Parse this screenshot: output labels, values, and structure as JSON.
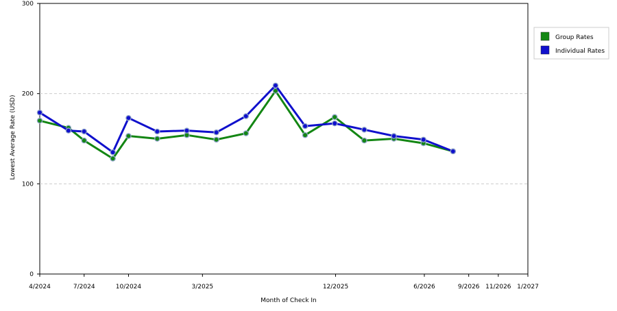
{
  "chart_data": {
    "type": "line",
    "title": "",
    "xlabel": "Month of Check In",
    "ylabel": "Lowest Average Rate (USD)",
    "ylim": [
      0,
      300
    ],
    "yticks": [
      0,
      100,
      200,
      300
    ],
    "grid": true,
    "legend_position": "right",
    "x": [
      "4/2024",
      "5/2024",
      "6/2024",
      "7/2024",
      "8/2024",
      "9/2024",
      "10/2024",
      "11/2024",
      "12/2024",
      "1/2025",
      "2/2025",
      "3/2025",
      "4/2025",
      "5/2025",
      "6/2025",
      "7/2025",
      "8/2025",
      "9/2025",
      "10/2025",
      "11/2025",
      "12/2025",
      "1/2026",
      "2/2026",
      "3/2026",
      "4/2026",
      "5/2026",
      "6/2026",
      "7/2026",
      "8/2026",
      "9/2026",
      "10/2026",
      "11/2026",
      "12/2026",
      "1/2027"
    ],
    "xtick_labels": [
      {
        "label": "4/2024",
        "index": 0
      },
      {
        "label": "7/2024",
        "index": 3
      },
      {
        "label": "10/2024",
        "index": 6
      },
      {
        "label": "3/2025",
        "index": 11
      },
      {
        "label": "12/2025",
        "index": 20
      },
      {
        "label": "6/2026",
        "index": 26
      },
      {
        "label": "9/2026",
        "index": 29
      },
      {
        "label": "11/2026",
        "index": 31
      },
      {
        "label": "1/2027",
        "index": 33
      }
    ],
    "series": [
      {
        "name": "Group Rates",
        "color": "#138613",
        "points": [
          {
            "x_index": 0,
            "y": 170
          },
          {
            "x_index": 1.94,
            "y": 162
          },
          {
            "x_index": 3.0,
            "y": 148
          },
          {
            "x_index": 4.94,
            "y": 128
          },
          {
            "x_index": 6.0,
            "y": 153
          },
          {
            "x_index": 7.94,
            "y": 150
          },
          {
            "x_index": 9.94,
            "y": 154
          },
          {
            "x_index": 11.94,
            "y": 149
          },
          {
            "x_index": 13.94,
            "y": 156
          },
          {
            "x_index": 15.94,
            "y": 203
          },
          {
            "x_index": 17.94,
            "y": 154
          },
          {
            "x_index": 19.94,
            "y": 174
          },
          {
            "x_index": 21.94,
            "y": 148
          },
          {
            "x_index": 23.94,
            "y": 150
          },
          {
            "x_index": 25.94,
            "y": 145
          },
          {
            "x_index": 27.94,
            "y": 136
          }
        ]
      },
      {
        "name": "Individual Rates",
        "color": "#1010cc",
        "points": [
          {
            "x_index": 0,
            "y": 179
          },
          {
            "x_index": 1.94,
            "y": 159
          },
          {
            "x_index": 3.0,
            "y": 158
          },
          {
            "x_index": 4.94,
            "y": 135
          },
          {
            "x_index": 6.0,
            "y": 173
          },
          {
            "x_index": 7.94,
            "y": 158
          },
          {
            "x_index": 9.94,
            "y": 159
          },
          {
            "x_index": 11.94,
            "y": 157
          },
          {
            "x_index": 13.94,
            "y": 175
          },
          {
            "x_index": 15.94,
            "y": 209
          },
          {
            "x_index": 17.94,
            "y": 164
          },
          {
            "x_index": 19.94,
            "y": 167
          },
          {
            "x_index": 21.94,
            "y": 160
          },
          {
            "x_index": 23.94,
            "y": 153
          },
          {
            "x_index": 25.94,
            "y": 149
          },
          {
            "x_index": 27.94,
            "y": 136
          }
        ]
      }
    ]
  }
}
